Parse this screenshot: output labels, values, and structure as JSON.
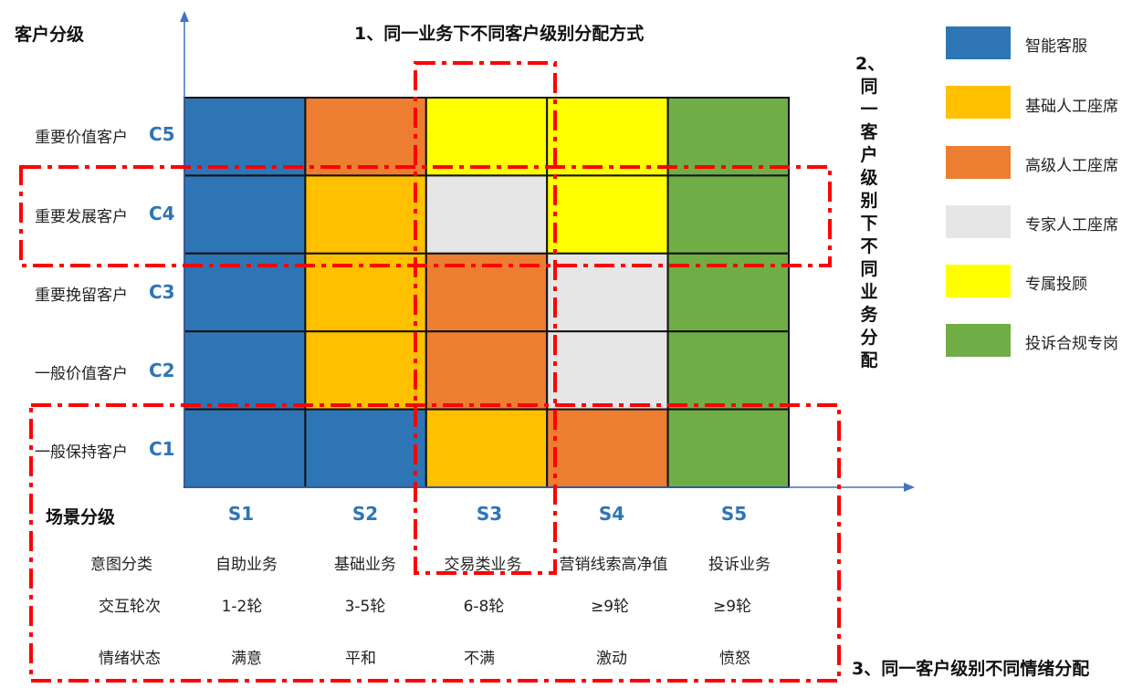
{
  "titles": {
    "y_axis": "客户分级",
    "x_axis": "场景分级",
    "top": "1、同一业务下不同客户级别分配方式",
    "right": "2、同一客户级别下不同业务分配",
    "bottom": "3、同一客户级别不同情绪分配"
  },
  "customer_levels": [
    {
      "code": "C5",
      "name": "重要价值客户"
    },
    {
      "code": "C4",
      "name": "重要发展客户"
    },
    {
      "code": "C3",
      "name": "重要挽留客户"
    },
    {
      "code": "C2",
      "name": "一般价值客户"
    },
    {
      "code": "C1",
      "name": "一般保持客户"
    }
  ],
  "scenarios": [
    "S1",
    "S2",
    "S3",
    "S4",
    "S5"
  ],
  "attribute_rows": [
    {
      "label": "意图分类",
      "values": [
        "自助业务",
        "基础业务",
        "交易类业务",
        "营销线索高净值",
        "投诉业务"
      ]
    },
    {
      "label": "交互轮次",
      "values": [
        "1-2轮",
        "3-5轮",
        "6-8轮",
        "≥9轮",
        "≥9轮"
      ]
    },
    {
      "label": "情绪状态",
      "values": [
        "满意",
        "平和",
        "不满",
        "激动",
        "愤怒"
      ]
    }
  ],
  "legend": [
    {
      "key": "smart",
      "label": "智能客服",
      "color": "#2e75b6"
    },
    {
      "key": "basic",
      "label": "基础人工座席",
      "color": "#ffc000"
    },
    {
      "key": "senior",
      "label": "高级人工座席",
      "color": "#ed7d31"
    },
    {
      "key": "expert",
      "label": "专家人工座席",
      "color": "#e7e6e6"
    },
    {
      "key": "advisor",
      "label": "专属投顾",
      "color": "#ffff00"
    },
    {
      "key": "complaint",
      "label": "投诉合规专岗",
      "color": "#70ad47"
    }
  ],
  "matrix": [
    [
      "smart",
      "senior",
      "advisor",
      "advisor",
      "complaint"
    ],
    [
      "smart",
      "basic",
      "expert",
      "advisor",
      "complaint"
    ],
    [
      "smart",
      "basic",
      "senior",
      "expert",
      "complaint"
    ],
    [
      "smart",
      "basic",
      "senior",
      "expert",
      "complaint"
    ],
    [
      "smart",
      "smart",
      "basic",
      "senior",
      "complaint"
    ]
  ],
  "colors": {
    "axis": "#4472c4",
    "grid_line": "#111111",
    "highlight_dash": "#ff0000"
  }
}
